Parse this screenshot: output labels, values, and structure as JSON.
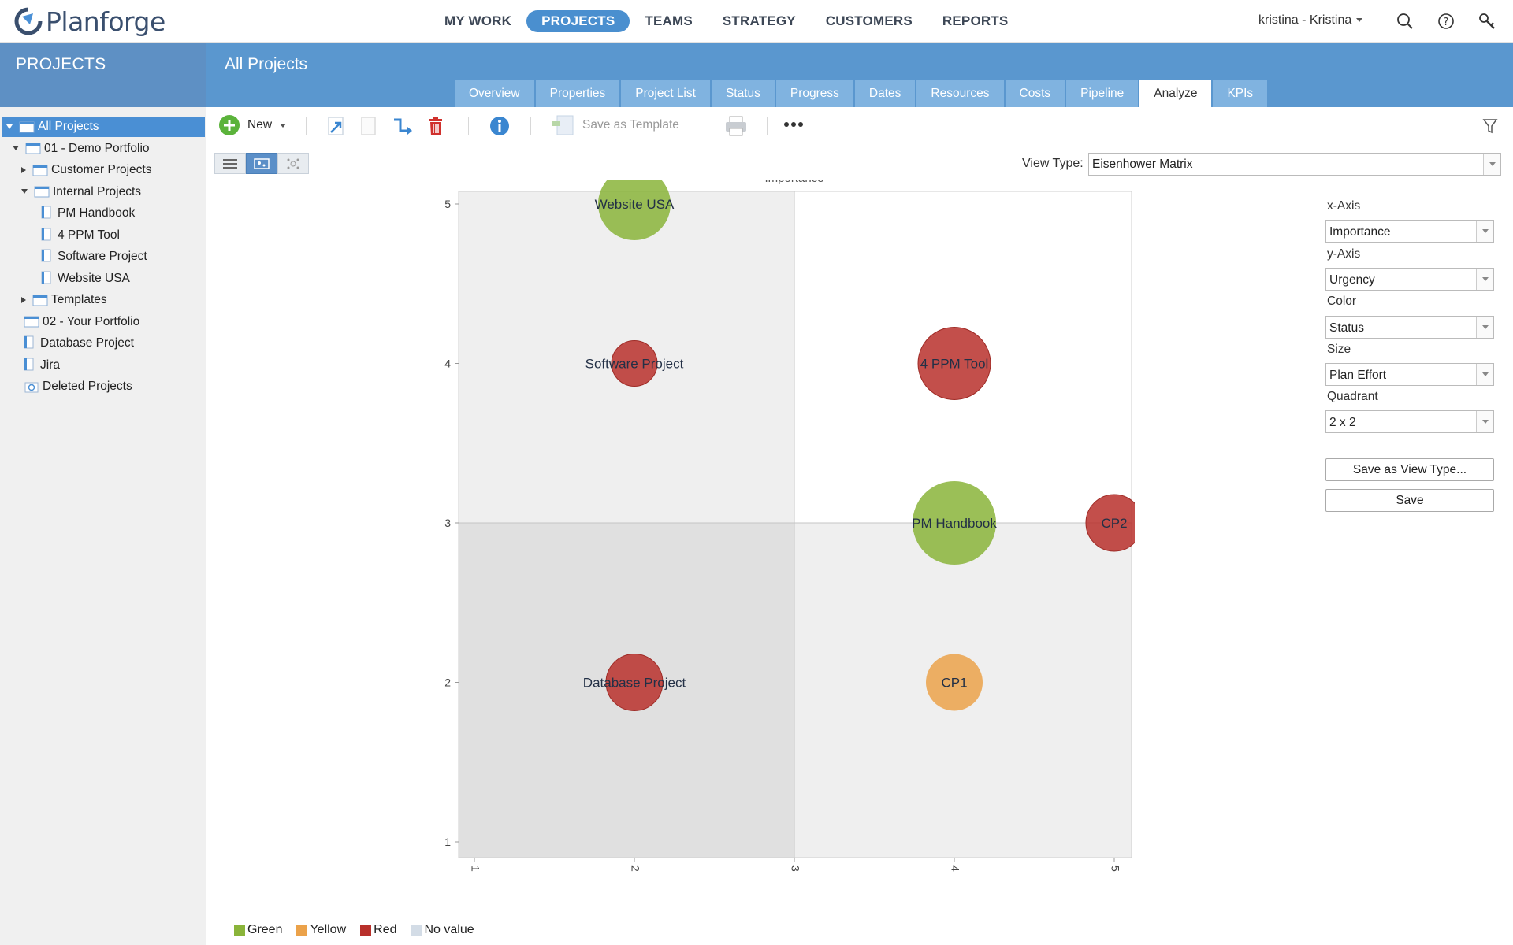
{
  "app": {
    "name": "Planforge"
  },
  "nav": {
    "items": [
      {
        "label": "MY WORK",
        "active": false
      },
      {
        "label": "PROJECTS",
        "active": true
      },
      {
        "label": "TEAMS",
        "active": false
      },
      {
        "label": "STRATEGY",
        "active": false
      },
      {
        "label": "CUSTOMERS",
        "active": false
      },
      {
        "label": "REPORTS",
        "active": false
      }
    ],
    "user": "kristina - Kristina",
    "icons": [
      "search-icon",
      "help-icon",
      "key-search-icon"
    ]
  },
  "sidebar": {
    "title": "PROJECTS",
    "tree": [
      {
        "label": "All Projects",
        "depth": 0,
        "toggle": "down",
        "icon": "folder-icon",
        "selected": true
      },
      {
        "label": "01 - Demo Portfolio",
        "depth": 1,
        "toggle": "down",
        "icon": "folder-icon"
      },
      {
        "label": "Customer Projects",
        "depth": 2,
        "toggle": "right",
        "icon": "folder-icon"
      },
      {
        "label": "Internal Projects",
        "depth": 2,
        "toggle": "down",
        "icon": "folder-icon"
      },
      {
        "label": "PM Handbook",
        "depth": 3,
        "toggle": "none",
        "icon": "project-icon"
      },
      {
        "label": "4 PPM Tool",
        "depth": 3,
        "toggle": "none",
        "icon": "project-icon"
      },
      {
        "label": "Software Project",
        "depth": 3,
        "toggle": "none",
        "icon": "project-icon"
      },
      {
        "label": "Website USA",
        "depth": 3,
        "toggle": "none",
        "icon": "project-icon"
      },
      {
        "label": "Templates",
        "depth": 2,
        "toggle": "right",
        "icon": "folder-icon"
      },
      {
        "label": "02 - Your Portfolio",
        "depth": 1,
        "toggle": "none",
        "icon": "folder-icon"
      },
      {
        "label": "Database Project",
        "depth": 1,
        "toggle": "none",
        "icon": "project-icon"
      },
      {
        "label": "Jira",
        "depth": 1,
        "toggle": "none",
        "icon": "project-icon"
      },
      {
        "label": "Deleted Projects",
        "depth": 1,
        "toggle": "none",
        "icon": "trash-folder-icon"
      }
    ]
  },
  "main": {
    "title": "All Projects",
    "tabs": [
      {
        "label": "Overview",
        "active": false
      },
      {
        "label": "Properties",
        "active": false
      },
      {
        "label": "Project List",
        "active": false
      },
      {
        "label": "Status",
        "active": false
      },
      {
        "label": "Progress",
        "active": false
      },
      {
        "label": "Dates",
        "active": false
      },
      {
        "label": "Resources",
        "active": false
      },
      {
        "label": "Costs",
        "active": false
      },
      {
        "label": "Pipeline",
        "active": false
      },
      {
        "label": "Analyze",
        "active": true
      },
      {
        "label": "KPIs",
        "active": false
      }
    ]
  },
  "toolbar": {
    "new_label": "New",
    "save_template_label": "Save as Template"
  },
  "view": {
    "type_label": "View Type:",
    "type_value": "Eisenhower Matrix"
  },
  "panel": {
    "xaxis_label": "x-Axis",
    "xaxis_value": "Importance",
    "yaxis_label": "y-Axis",
    "yaxis_value": "Urgency",
    "color_label": "Color",
    "color_value": "Status",
    "size_label": "Size",
    "size_value": "Plan Effort",
    "quadrant_label": "Quadrant",
    "quadrant_value": "2 x 2",
    "save_view_label": "Save as View Type...",
    "save_label": "Save"
  },
  "colors": {
    "Green": "#8ab43a",
    "Yellow": "#eba24a",
    "Red": "#b8302b",
    "No value": "#d3dce6",
    "accent": "#4a8fcf"
  },
  "chart_data": {
    "type": "scatter",
    "title": "Importance",
    "xlabel": "",
    "ylabel": "Urgency",
    "xlim": [
      1,
      5
    ],
    "ylim": [
      1,
      5
    ],
    "xticks": [
      1,
      2,
      3,
      4,
      5
    ],
    "yticks": [
      1,
      2,
      3,
      4,
      5
    ],
    "quadrant": "2 x 2",
    "points": [
      {
        "label": "Website USA",
        "x": 2,
        "y": 5,
        "size": "large",
        "status": "Green"
      },
      {
        "label": "Software Project",
        "x": 2,
        "y": 4,
        "size": "small",
        "status": "Red"
      },
      {
        "label": "4 PPM Tool",
        "x": 4,
        "y": 4,
        "size": "large",
        "status": "Red"
      },
      {
        "label": "PM Handbook",
        "x": 4,
        "y": 3,
        "size": "xlarge",
        "status": "Green"
      },
      {
        "label": "CP2",
        "x": 5,
        "y": 3,
        "size": "medium",
        "status": "Red"
      },
      {
        "label": "Database Project",
        "x": 2,
        "y": 2,
        "size": "medium",
        "status": "Red"
      },
      {
        "label": "CP1",
        "x": 4,
        "y": 2,
        "size": "medium",
        "status": "Yellow"
      }
    ],
    "legend": [
      "Green",
      "Yellow",
      "Red",
      "No value"
    ]
  }
}
